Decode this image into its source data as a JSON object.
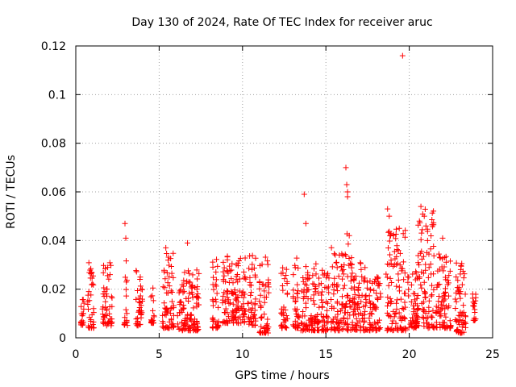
{
  "chart_data": {
    "type": "scatter",
    "title": "Day 130 of 2024, Rate Of TEC Index for receiver aruc",
    "xlabel": "GPS time / hours",
    "ylabel": "ROTI / TECUs",
    "xlim": [
      0,
      25
    ],
    "ylim": [
      0,
      0.12
    ],
    "xticks": [
      0,
      5,
      10,
      15,
      20,
      25
    ],
    "yticks": [
      0,
      0.02,
      0.04,
      0.06,
      0.08,
      0.1,
      0.12
    ],
    "xtick_labels": [
      "0",
      "5",
      "10",
      "15",
      "20",
      "25"
    ],
    "ytick_labels": [
      "0",
      "0.02",
      "0.04",
      "0.06",
      "0.08",
      "0.1",
      "0.12"
    ],
    "grid": true,
    "marker": "+",
    "color": "#ff0000",
    "series": [
      {
        "name": "ROTI",
        "clusters": [
          {
            "x": [
              0.3,
              0.5
            ],
            "y": [
              0.005,
              0.016
            ]
          },
          {
            "x": [
              0.7,
              1.1
            ],
            "y": [
              0.004,
              0.031
            ]
          },
          {
            "x": [
              1.6,
              2.2
            ],
            "y": [
              0.005,
              0.031
            ]
          },
          {
            "x": [
              2.9,
              3.1
            ],
            "y": [
              0.005,
              0.032
            ]
          },
          {
            "x": [
              3.6,
              4.0
            ],
            "y": [
              0.005,
              0.028
            ]
          },
          {
            "x": [
              4.5,
              4.7
            ],
            "y": [
              0.006,
              0.021
            ]
          },
          {
            "x": [
              5.2,
              5.9
            ],
            "y": [
              0.004,
              0.037
            ]
          },
          {
            "x": [
              6.1,
              7.4
            ],
            "y": [
              0.003,
              0.028
            ]
          },
          {
            "x": [
              8.2,
              8.6
            ],
            "y": [
              0.004,
              0.036
            ]
          },
          {
            "x": [
              8.8,
              10.2
            ],
            "y": [
              0.006,
              0.035
            ]
          },
          {
            "x": [
              10.3,
              10.8
            ],
            "y": [
              0.005,
              0.036
            ]
          },
          {
            "x": [
              11.0,
              11.6
            ],
            "y": [
              0.002,
              0.035
            ]
          },
          {
            "x": [
              12.3,
              12.7
            ],
            "y": [
              0.004,
              0.029
            ]
          },
          {
            "x": [
              13.0,
              13.4
            ],
            "y": [
              0.004,
              0.035
            ]
          },
          {
            "x": [
              13.5,
              14.6
            ],
            "y": [
              0.003,
              0.031
            ]
          },
          {
            "x": [
              14.7,
              15.2
            ],
            "y": [
              0.003,
              0.028
            ]
          },
          {
            "x": [
              15.3,
              16.0
            ],
            "y": [
              0.003,
              0.038
            ]
          },
          {
            "x": [
              16.0,
              16.6
            ],
            "y": [
              0.003,
              0.043
            ]
          },
          {
            "x": [
              16.6,
              17.5
            ],
            "y": [
              0.003,
              0.031
            ]
          },
          {
            "x": [
              17.6,
              18.3
            ],
            "y": [
              0.003,
              0.025
            ]
          },
          {
            "x": [
              18.6,
              19.8
            ],
            "y": [
              0.003,
              0.045
            ]
          },
          {
            "x": [
              19.9,
              20.5
            ],
            "y": [
              0.004,
              0.032
            ]
          },
          {
            "x": [
              20.5,
              21.5
            ],
            "y": [
              0.004,
              0.055
            ]
          },
          {
            "x": [
              21.6,
              22.5
            ],
            "y": [
              0.004,
              0.035
            ]
          },
          {
            "x": [
              22.7,
              23.4
            ],
            "y": [
              0.002,
              0.031
            ]
          },
          {
            "x": [
              23.8,
              24.0
            ],
            "y": [
              0.007,
              0.02
            ]
          }
        ],
        "outliers": [
          [
            2.95,
            0.047
          ],
          [
            3.0,
            0.041
          ],
          [
            5.4,
            0.037
          ],
          [
            6.7,
            0.039
          ],
          [
            13.7,
            0.059
          ],
          [
            13.8,
            0.047
          ],
          [
            16.2,
            0.07
          ],
          [
            16.25,
            0.063
          ],
          [
            16.3,
            0.06
          ],
          [
            16.3,
            0.058
          ],
          [
            16.4,
            0.042
          ],
          [
            18.7,
            0.053
          ],
          [
            18.8,
            0.05
          ],
          [
            19.6,
            0.116
          ],
          [
            19.4,
            0.045
          ],
          [
            20.7,
            0.054
          ],
          [
            20.9,
            0.05
          ],
          [
            21.0,
            0.046
          ],
          [
            21.1,
            0.04
          ],
          [
            22.0,
            0.041
          ]
        ]
      }
    ]
  }
}
